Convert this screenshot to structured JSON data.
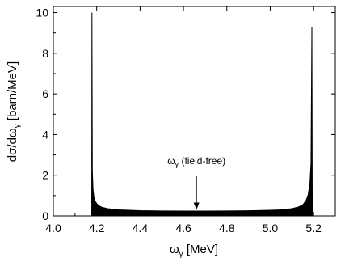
{
  "chart_data": {
    "type": "area",
    "xlabel": "ω",
    "xlabel_sub": "γ",
    "xlabel_unit": " [MeV]",
    "ylabel": "dσ/dω",
    "ylabel_sub": "γ",
    "ylabel_unit": " [barn/MeV]",
    "xlim": [
      4.0,
      5.3
    ],
    "ylim": [
      0,
      10.3
    ],
    "xticks": [
      "4.0",
      "4.2",
      "4.4",
      "4.6",
      "4.8",
      "5.0",
      "5.2"
    ],
    "xtick_values": [
      4.0,
      4.2,
      4.4,
      4.6,
      4.8,
      5.0,
      5.2
    ],
    "yticks": [
      "0",
      "2",
      "4",
      "6",
      "8",
      "10"
    ],
    "ytick_values": [
      0,
      2,
      4,
      6,
      8,
      10
    ],
    "grid": false,
    "fill_color": "#000000",
    "series": [
      {
        "x": [
          4.177,
          4.178,
          4.18,
          4.183,
          4.187,
          4.192,
          4.2,
          4.21,
          4.225,
          4.25,
          4.3,
          4.4,
          4.5,
          4.6,
          4.7,
          4.8,
          4.9,
          5.0,
          5.05,
          5.1,
          5.13,
          5.15,
          5.165,
          5.175,
          5.183,
          5.188,
          5.192,
          5.194
        ],
        "y": [
          0,
          10.0,
          2.2,
          1.3,
          0.95,
          0.75,
          0.6,
          0.5,
          0.42,
          0.36,
          0.3,
          0.26,
          0.245,
          0.24,
          0.24,
          0.245,
          0.255,
          0.28,
          0.3,
          0.36,
          0.44,
          0.55,
          0.75,
          1.05,
          1.6,
          2.6,
          9.3,
          0
        ]
      }
    ],
    "annotations": [
      {
        "text": "ω",
        "sub": "γ",
        "suffix": " (field-free)",
        "x": 4.66,
        "y_text": 2.55,
        "arrow_from": 1.95,
        "arrow_to": 0.3
      }
    ]
  }
}
